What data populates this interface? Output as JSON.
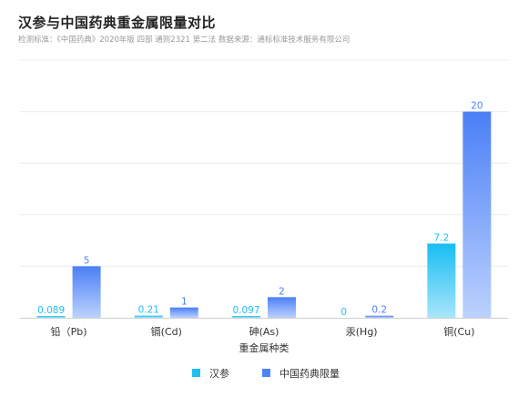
{
  "chart_data": {
    "type": "bar",
    "title": "汉参与中国药典重金属限量对比",
    "subtitle": "检测标准：《中国药典》2020年版 四部 通则2321 第二法 数据来源：通标标准技术服务有限公司",
    "xlabel": "重金属种类",
    "ylabel": "",
    "ylim": [
      0,
      25
    ],
    "grid": true,
    "legend_position": "bottom",
    "categories": [
      "铅（Pb)",
      "镉(Cd)",
      "砷(As)",
      "汞(Hg)",
      "铜(Cu)"
    ],
    "series": [
      {
        "name": "汉参",
        "values": [
          0.089,
          0.21,
          0.097,
          0,
          7.2
        ],
        "labels": [
          "0.089",
          "0.21",
          "0.097",
          "0",
          "7.2"
        ],
        "color": "#1ec0f2",
        "label_color": "#1ec0f2"
      },
      {
        "name": "中国药典限量",
        "values": [
          5,
          1,
          2,
          0.2,
          20
        ],
        "labels": [
          "5",
          "1",
          "2",
          "0.2",
          "20"
        ],
        "color": "#4f84f7",
        "label_color": "#4f84f7"
      }
    ]
  }
}
